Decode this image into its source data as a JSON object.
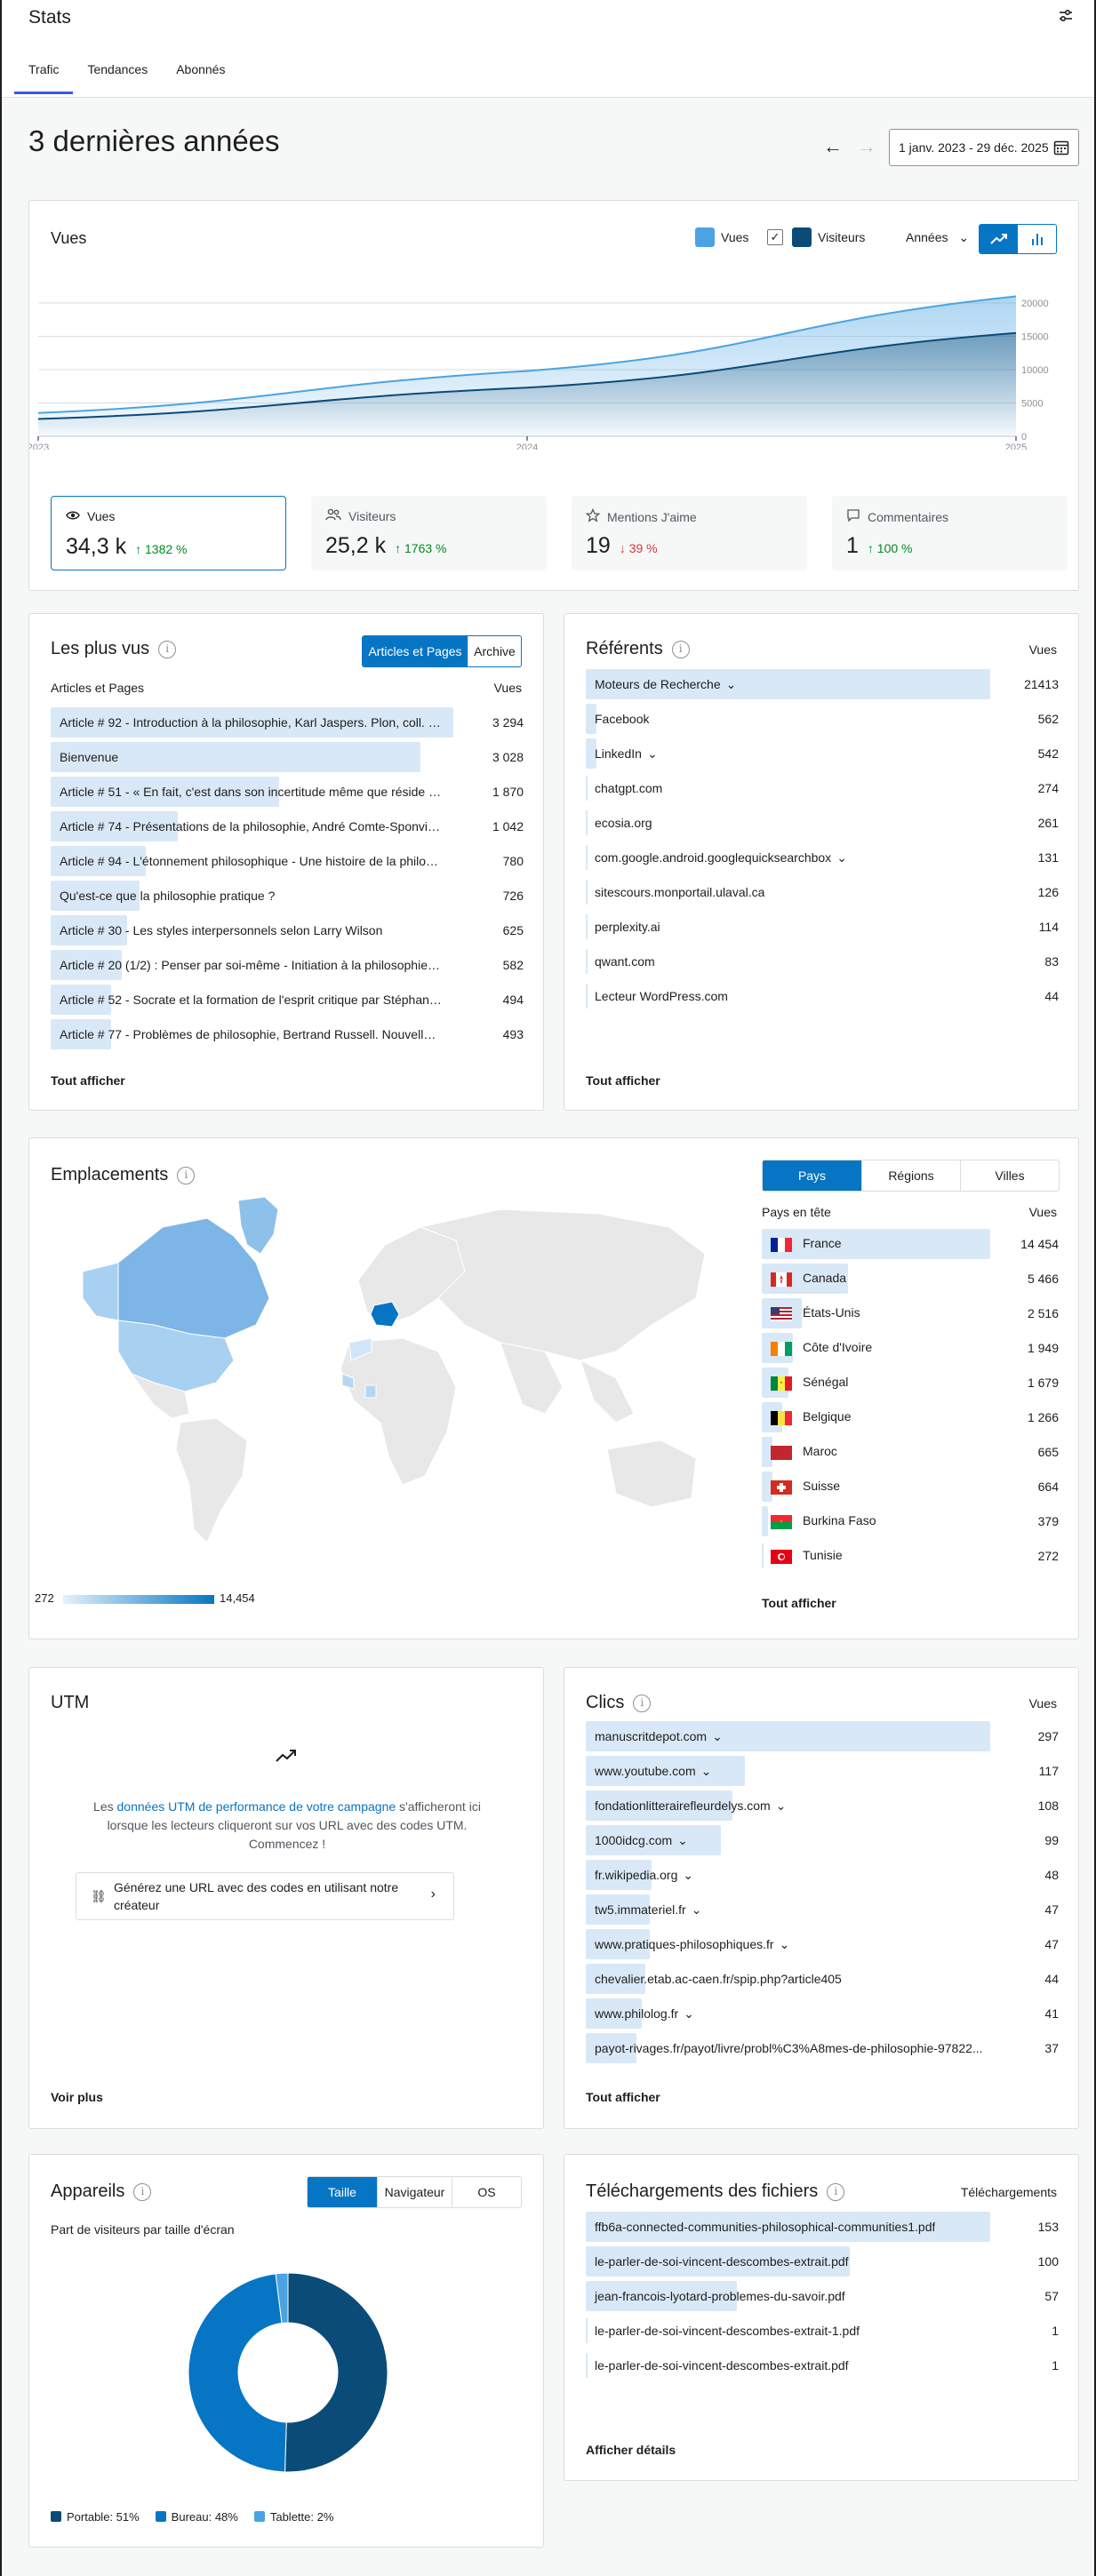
{
  "app": {
    "title": "Stats",
    "tabs": [
      "Trafic",
      "Tendances",
      "Abonnés"
    ]
  },
  "period": {
    "title": "3 dernières années",
    "date_range": "1 janv. 2023 - 29 déc. 2025"
  },
  "views_card": {
    "title": "Vues",
    "legend": [
      {
        "label": "Vues",
        "color": "#4ba3e3"
      },
      {
        "label": "Visiteurs",
        "color": "#0a4b78",
        "checked_mark": "✓"
      }
    ],
    "period_select": "Années",
    "chart_data": {
      "type": "area",
      "x": [
        "2023",
        "2024",
        "2025"
      ],
      "series": [
        {
          "name": "Vues",
          "values": [
            3500,
            9800,
            21000
          ]
        },
        {
          "name": "Visiteurs",
          "values": [
            2600,
            7300,
            15500
          ]
        }
      ],
      "y_ticks": [
        "0",
        "5000",
        "10000",
        "15000",
        "20000"
      ],
      "ylim": [
        0,
        20000
      ],
      "grid": true
    },
    "tiles": [
      {
        "label": "Vues",
        "icon": "eye-icon",
        "value": "34,3 k",
        "delta": "↑ 1382 %",
        "trend": "up"
      },
      {
        "label": "Visiteurs",
        "icon": "people-icon",
        "value": "25,2 k",
        "delta": "↑ 1763 %",
        "trend": "up"
      },
      {
        "label": "Mentions J'aime",
        "icon": "star-icon",
        "value": "19",
        "delta": "↓ 39 %",
        "trend": "down"
      },
      {
        "label": "Commentaires",
        "icon": "comment-icon",
        "value": "1",
        "delta": "↑ 100 %",
        "trend": "up"
      }
    ]
  },
  "top_posts": {
    "title": "Les plus vus",
    "toggle": [
      "Articles et Pages",
      "Archive"
    ],
    "col_left": "Articles et Pages",
    "col_right": "Vues",
    "show_all": "Tout afficher",
    "rows": [
      {
        "label": "Article # 92 - Introduction à la philosophie, Karl Jaspers. Plon, coll. 10-...",
        "value": "3 294",
        "n": 3294
      },
      {
        "label": "Bienvenue",
        "value": "3 028",
        "n": 3028
      },
      {
        "label": "Article # 51 - « En fait, c'est dans son incertitude même que réside lar...",
        "value": "1 870",
        "n": 1870
      },
      {
        "label": "Article # 74 - Présentations de la philosophie, André Comte-Sponville....",
        "value": "1 042",
        "n": 1042
      },
      {
        "label": "Article # 94 - L'étonnement philosophique - Une histoire de la philoso...",
        "value": "780",
        "n": 780
      },
      {
        "label": "Qu'est-ce que la philosophie pratique ?",
        "value": "726",
        "n": 726
      },
      {
        "label": "Article # 30 - Les styles interpersonnels selon Larry Wilson",
        "value": "625",
        "n": 625
      },
      {
        "label": "Article # 20 (1/2) : Penser par soi-même - Initiation à la philosophie, M...",
        "value": "582",
        "n": 582
      },
      {
        "label": "Article # 52 - Socrate et la formation de l'esprit critique par Stéphanie ...",
        "value": "494",
        "n": 494
      },
      {
        "label": "Article # 77 - Problèmes de philosophie, Bertrand Russell. Nouvelle tra...",
        "value": "493",
        "n": 493
      }
    ]
  },
  "referrers": {
    "title": "Référents",
    "col_right": "Vues",
    "show_all": "Tout afficher",
    "rows": [
      {
        "label": "Moteurs de Recherche",
        "value": "21413",
        "n": 21413,
        "chevron": true
      },
      {
        "label": "Facebook",
        "value": "562",
        "n": 562
      },
      {
        "label": "LinkedIn",
        "value": "542",
        "n": 542,
        "chevron": true
      },
      {
        "label": "chatgpt.com",
        "value": "274",
        "n": 274
      },
      {
        "label": "ecosia.org",
        "value": "261",
        "n": 261
      },
      {
        "label": "com.google.android.googlequicksearchbox",
        "value": "131",
        "n": 131,
        "chevron": true
      },
      {
        "label": "sitescours.monportail.ulaval.ca",
        "value": "126",
        "n": 126
      },
      {
        "label": "perplexity.ai",
        "value": "114",
        "n": 114
      },
      {
        "label": "qwant.com",
        "value": "83",
        "n": 83
      },
      {
        "label": "Lecteur WordPress.com",
        "value": "44",
        "n": 44
      }
    ]
  },
  "locations": {
    "title": "Emplacements",
    "tabs": [
      "Pays",
      "Régions",
      "Villes"
    ],
    "col_left": "Pays en tête",
    "col_right": "Vues",
    "show_all": "Tout afficher",
    "scale_min": "272",
    "scale_max": "14,454",
    "rows": [
      {
        "label": "France",
        "value": "14 454",
        "n": 14454,
        "flag": "fr"
      },
      {
        "label": "Canada",
        "value": "5 466",
        "n": 5466,
        "flag": "ca"
      },
      {
        "label": "États-Unis",
        "value": "2 516",
        "n": 2516,
        "flag": "us"
      },
      {
        "label": "Côte d'Ivoire",
        "value": "1 949",
        "n": 1949,
        "flag": "ci"
      },
      {
        "label": "Sénégal",
        "value": "1 679",
        "n": 1679,
        "flag": "sn"
      },
      {
        "label": "Belgique",
        "value": "1 266",
        "n": 1266,
        "flag": "be"
      },
      {
        "label": "Maroc",
        "value": "665",
        "n": 665,
        "flag": "ma"
      },
      {
        "label": "Suisse",
        "value": "664",
        "n": 664,
        "flag": "ch"
      },
      {
        "label": "Burkina Faso",
        "value": "379",
        "n": 379,
        "flag": "bf"
      },
      {
        "label": "Tunisie",
        "value": "272",
        "n": 272,
        "flag": "tn"
      }
    ]
  },
  "utm": {
    "title": "UTM",
    "text_before": "Les ",
    "link": "données UTM de performance de votre campagne",
    "text_after": " s'afficheront ici lorsque les lecteurs cliqueront sur vos URL avec des codes UTM. Commencez !",
    "button": "Générez une URL avec des codes en utilisant notre créateur",
    "more": "Voir plus"
  },
  "clicks": {
    "title": "Clics",
    "col_right": "Vues",
    "show_all": "Tout afficher",
    "rows": [
      {
        "label": "manuscritdepot.com",
        "value": "297",
        "n": 297,
        "chevron": true
      },
      {
        "label": "www.youtube.com",
        "value": "117",
        "n": 117,
        "chevron": true
      },
      {
        "label": "fondationlitterairefleurdelys.com",
        "value": "108",
        "n": 108,
        "chevron": true
      },
      {
        "label": "1000idcg.com",
        "value": "99",
        "n": 99,
        "chevron": true
      },
      {
        "label": "fr.wikipedia.org",
        "value": "48",
        "n": 48,
        "chevron": true
      },
      {
        "label": "tw5.immateriel.fr",
        "value": "47",
        "n": 47,
        "chevron": true
      },
      {
        "label": "www.pratiques-philosophiques.fr",
        "value": "47",
        "n": 47,
        "chevron": true
      },
      {
        "label": "chevalier.etab.ac-caen.fr/spip.php?article405",
        "value": "44",
        "n": 44
      },
      {
        "label": "www.philolog.fr",
        "value": "41",
        "n": 41,
        "chevron": true
      },
      {
        "label": "payot-rivages.fr/payot/livre/probl%C3%A8mes-de-philosophie-97822...",
        "value": "37",
        "n": 37
      }
    ]
  },
  "devices": {
    "title": "Appareils",
    "tabs": [
      "Taille",
      "Navigateur",
      "OS"
    ],
    "subtitle": "Part de visiteurs par taille d'écran",
    "chart_data": {
      "type": "pie",
      "slices": [
        {
          "label": "Portable: 51%",
          "value": 51,
          "color": "#0a4b78"
        },
        {
          "label": "Bureau: 48%",
          "value": 48,
          "color": "#0675c4"
        },
        {
          "label": "Tablette: 2%",
          "value": 2,
          "color": "#4ba3e3"
        }
      ]
    }
  },
  "downloads": {
    "title": "Téléchargements des fichiers",
    "col_right": "Téléchargements",
    "details": "Afficher détails",
    "rows": [
      {
        "label": "ffb6a-connected-communities-philosophical-communities1.pdf",
        "value": "153",
        "n": 153
      },
      {
        "label": "le-parler-de-soi-vincent-descombes-extrait.pdf",
        "value": "100",
        "n": 100
      },
      {
        "label": "jean-francois-lyotard-problemes-du-savoir.pdf",
        "value": "57",
        "n": 57
      },
      {
        "label": "le-parler-de-soi-vincent-descombes-extrait-1.pdf",
        "value": "1",
        "n": 1
      },
      {
        "label": "le-parler-de-soi-vincent-descombes-extrait.pdf",
        "value": "1",
        "n": 1
      }
    ]
  }
}
